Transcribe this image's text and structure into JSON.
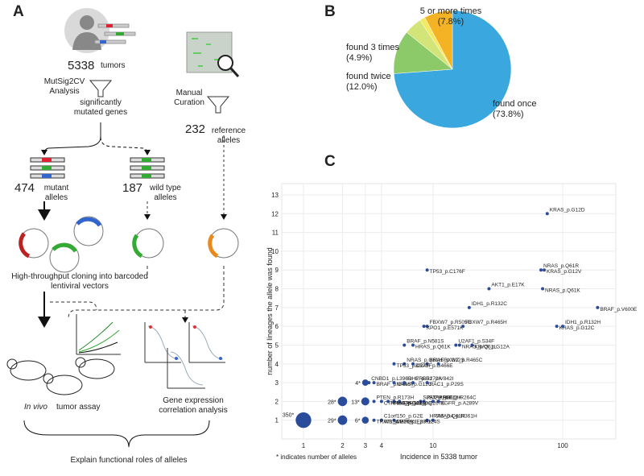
{
  "panel_labels": [
    "A",
    "B",
    "C"
  ],
  "diagram": {
    "tumor_count": 5338,
    "tumor_unit": "tumors",
    "analysis": "MutSig2CV Analysis",
    "filter_result": "significantly mutated genes",
    "curation": "Manual Curation",
    "reference_count": 232,
    "reference_unit": "reference alleles",
    "mutant_count": 474,
    "mutant_unit": "mutant alleles",
    "wildtype_count": 187,
    "wildtype_unit": "wild type alleles",
    "cloning": "High-throughput cloning into barcoded lentiviral vectors",
    "in_vivo": "In vivo",
    "in_vivo_rest": "tumor assay",
    "expression": "Gene expression correlation analysis",
    "conclusion": "Explain functional roles of alleles"
  },
  "chart_data": [
    {
      "type": "pie",
      "categories": [
        "found once",
        "found twice",
        "found 3 times",
        null,
        "5 or more times"
      ],
      "values": [
        73.8,
        12.0,
        4.9,
        1.5,
        7.8
      ],
      "value_labels": [
        "(73.8%)",
        "(12.0%)",
        "(4.9%)",
        null,
        "(7.8%)"
      ],
      "colors": [
        "#3aa7de",
        "#8cc968",
        "#d3e579",
        "#f4ea62",
        "#f4b324"
      ]
    },
    {
      "type": "scatter",
      "x_label": "Incidence in 5338 tumor",
      "y_label": "number of lineages the allele was found",
      "note": "* indicates number of alleles",
      "xscale": "log",
      "xlim": [
        0.68,
        257
      ],
      "ylim": [
        0,
        13.6
      ],
      "xticks": [
        1,
        2,
        3,
        4,
        10,
        100
      ],
      "yticks": [
        1,
        2,
        3,
        4,
        5,
        6,
        7,
        8,
        9,
        10,
        11,
        12,
        13
      ],
      "grid": true,
      "points": {
        "color": "#2b4c9b",
        "labels": [
          "KRAS_p.G12D",
          "TP53_p.C176F",
          "NRAS_p.Q61R",
          "KRAS_p.G12V",
          "AKT1_p.E17K",
          "NRAS_p.Q61K",
          "IDH1_p.R132C",
          "BRAF_p.V600E",
          "FBXW7_p.R505C",
          "XPO1_p.E571K",
          "FBXW7_p.R465H",
          "KRAS_p.G12C",
          "IDH1_p.R132H",
          "HRAS_p.Q61K",
          "BRAF_p.N581S",
          "NRAS_p.Q61L",
          "U2AF1_p.S34F",
          "KRAS_p.G12A",
          "NRAS_p.Q61H",
          "TP53_p.C275F",
          "KRAS_p.G12S",
          "BRAF_p.G466E",
          "FBXW7_p.R465C",
          "BRAF_p.G466V",
          "CNBD1_p.L396R",
          "NRAS_p.G12C",
          "ERBB2_p.V842I",
          "RAC1_p.P29S",
          "IDH2_p.R172K",
          "RHOA_p.E40Q",
          "SPATA8_p.E18K",
          "CTNNB1_p.G34R",
          "JSX_p.R86C",
          "EGFR_p.A289V",
          "PTEN_p.R173H",
          "GPR141_p.E267K",
          "PPP6C_p.R264C",
          "HRAS_p.G12D",
          "SMAD4_p.R361H",
          "MAP2K1_p.P124S",
          "HRAS_p.Q61R",
          "WBSCR17_p.E289K",
          "C1orf150_p.G2E",
          "TRAT1_p.E76K"
        ],
        "x": [
          76,
          9,
          68,
          72,
          27,
          70,
          19,
          186,
          9,
          8.5,
          17,
          90,
          100,
          7,
          6,
          16,
          15,
          20,
          6,
          5,
          9,
          7,
          11,
          3.5,
          3.2,
          5,
          7,
          9,
          6,
          5,
          8,
          4,
          8.5,
          11,
          3.5,
          5.5,
          10,
          4.5,
          10,
          5,
          9,
          4,
          4,
          3.5
        ],
        "y": [
          12,
          9,
          9,
          9,
          8,
          8,
          7,
          7,
          6,
          6,
          6,
          6,
          6,
          5,
          5,
          5,
          5,
          5,
          4,
          4,
          4,
          4,
          4,
          3,
          3,
          3,
          3,
          3,
          3,
          2,
          2,
          2,
          2,
          2,
          2,
          2,
          2,
          2,
          1,
          1,
          1,
          1,
          1,
          1
        ]
      },
      "groups": {
        "color": "#2b4c9b",
        "x": [
          1,
          2,
          2,
          3,
          3,
          3
        ],
        "y": [
          1,
          2,
          1,
          2,
          3,
          1
        ],
        "sizes": [
          350,
          28,
          29,
          13,
          4,
          6
        ],
        "size_labels": [
          "350*",
          "28*",
          "29*",
          "13*",
          "4*",
          "6*"
        ]
      }
    }
  ]
}
